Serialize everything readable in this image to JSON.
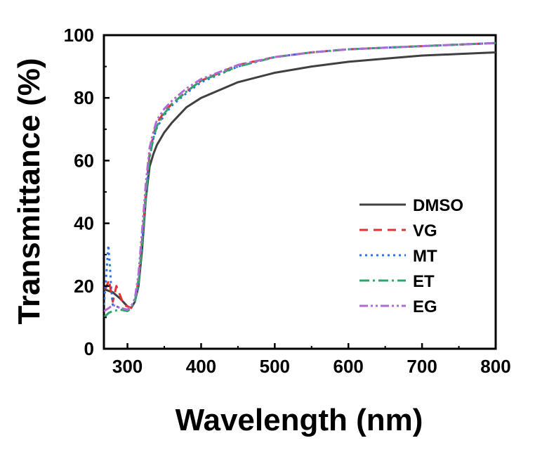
{
  "chart_data": {
    "type": "line",
    "title": "",
    "xlabel": "Wavelength (nm)",
    "ylabel": "Transmittance (%)",
    "xlim": [
      268,
      800
    ],
    "ylim": [
      0,
      100
    ],
    "xticks": [
      300,
      400,
      500,
      600,
      700,
      800
    ],
    "yticks": [
      0,
      20,
      40,
      60,
      80,
      100
    ],
    "grid": false,
    "legend_position": "right",
    "series": [
      {
        "name": "DMSO",
        "color": "#404040",
        "dash": "solid",
        "x": [
          268,
          280,
          290,
          300,
          305,
          310,
          315,
          320,
          325,
          330,
          335,
          340,
          350,
          360,
          380,
          400,
          450,
          500,
          550,
          600,
          650,
          700,
          750,
          800
        ],
        "y": [
          19,
          18,
          16,
          13.5,
          13,
          15,
          20,
          32,
          48,
          58,
          62,
          65,
          69,
          72,
          77,
          80,
          85,
          88,
          90,
          91.5,
          92.5,
          93.5,
          94,
          94.5
        ]
      },
      {
        "name": "VG",
        "color": "#e8312f",
        "dash": "12,8",
        "x": [
          270,
          275,
          280,
          285,
          290,
          295,
          300,
          305,
          310,
          315,
          320,
          325,
          330,
          335,
          340,
          350,
          360,
          380,
          400,
          450,
          500,
          550,
          600,
          650,
          700,
          750,
          800
        ],
        "y": [
          19,
          22,
          15,
          20,
          17,
          14,
          13.5,
          13,
          15,
          22,
          35,
          50,
          62,
          68,
          72,
          75.5,
          78,
          82,
          85.5,
          90.5,
          93,
          94.5,
          95.5,
          96,
          96.5,
          97,
          97.5
        ]
      },
      {
        "name": "MT",
        "color": "#2b6fe0",
        "dash": "3,5",
        "x": [
          268,
          270,
          272,
          274,
          276,
          278,
          280,
          290,
          300,
          305,
          310,
          315,
          320,
          325,
          330,
          335,
          340,
          350,
          360,
          380,
          400,
          450,
          500,
          550,
          600,
          650,
          700,
          750,
          800
        ],
        "y": [
          14,
          20,
          26,
          33,
          27,
          19,
          14,
          13,
          12.5,
          13,
          15,
          21,
          34,
          49,
          61,
          67,
          70.5,
          74.5,
          77.5,
          81.5,
          85,
          90,
          93,
          94.5,
          95.5,
          96,
          96.5,
          97,
          97.5
        ]
      },
      {
        "name": "ET",
        "color": "#2ea56a",
        "dash": "14,5,3,5",
        "x": [
          268,
          275,
          280,
          290,
          300,
          305,
          310,
          315,
          320,
          325,
          330,
          335,
          340,
          350,
          360,
          380,
          400,
          450,
          500,
          550,
          600,
          650,
          700,
          750,
          800
        ],
        "y": [
          10,
          11.5,
          12,
          12.5,
          12,
          13,
          15,
          21,
          34,
          49,
          61,
          67,
          71,
          75,
          78,
          82,
          85.5,
          90,
          93,
          94.5,
          95.5,
          96,
          96.5,
          97,
          97.5
        ]
      },
      {
        "name": "EG",
        "color": "#b06ad8",
        "dash": "12,4,3,4,3,4",
        "x": [
          268,
          275,
          280,
          290,
          300,
          305,
          310,
          315,
          320,
          325,
          330,
          335,
          340,
          350,
          360,
          380,
          400,
          450,
          500,
          550,
          600,
          650,
          700,
          750,
          800
        ],
        "y": [
          12,
          13,
          14,
          13,
          12.5,
          13.5,
          16,
          24,
          38,
          53,
          64,
          69,
          73,
          76.5,
          79,
          83,
          86,
          90.5,
          93,
          94.5,
          95.5,
          96,
          96.5,
          97,
          97.5
        ]
      }
    ]
  }
}
